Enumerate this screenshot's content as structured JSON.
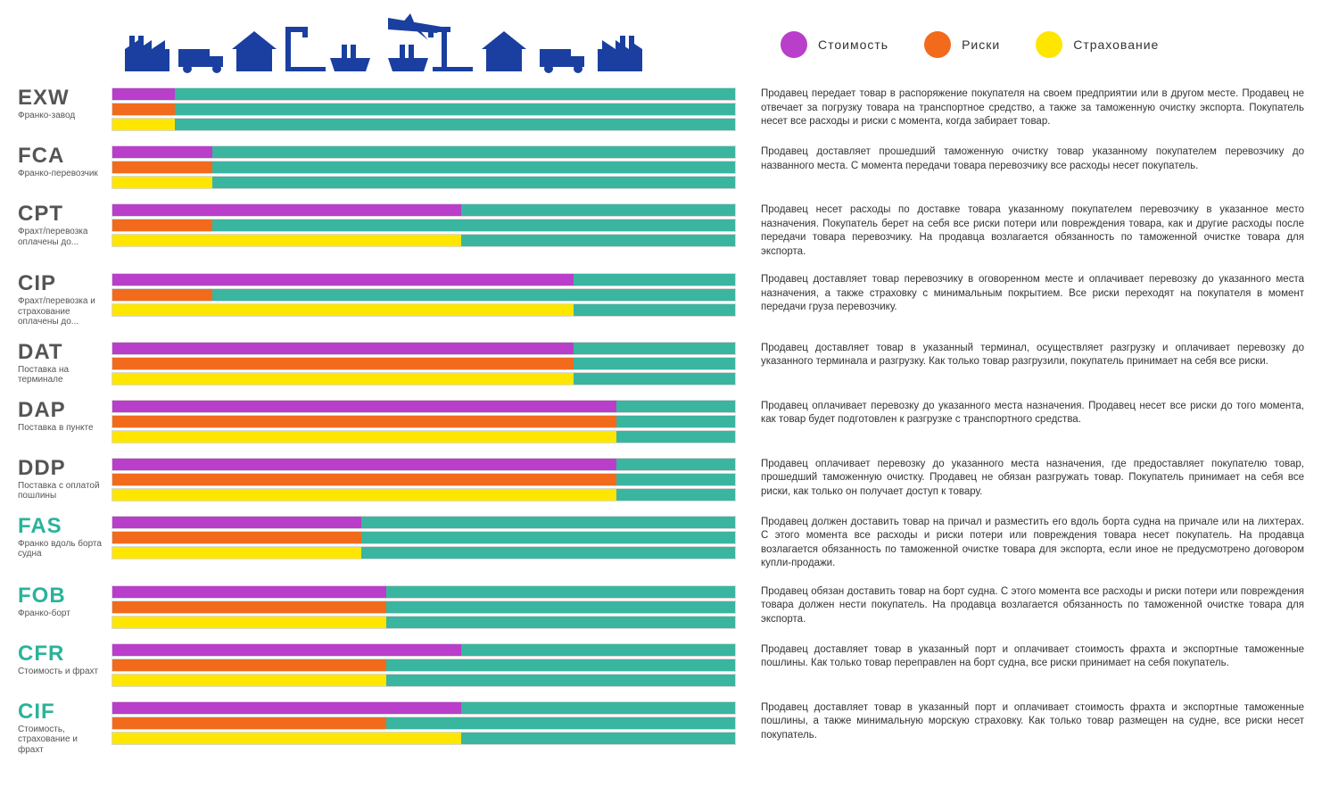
{
  "colors": {
    "cost": "#b93ec9",
    "risk": "#f26a1b",
    "insurance": "#ffe600",
    "neutral": "#3ab5a0",
    "iconBlue": "#1a3fa0",
    "codeDark": "#555555",
    "codeTeal": "#2bb39a"
  },
  "legend": [
    {
      "key": "cost",
      "label": "Стоимость"
    },
    {
      "key": "risk",
      "label": "Риски"
    },
    {
      "key": "insurance",
      "label": "Страхование"
    }
  ],
  "bar_neutral_key": "neutral",
  "terms": [
    {
      "code": "EXW",
      "sub": "Франко-завод",
      "codeColor": "codeDark",
      "bars": {
        "cost": 10,
        "risk": 10,
        "insurance": 10
      },
      "desc": "Продавец передает товар в распоряжение покупателя на своем предприятии или в другом месте. Продавец не отвечает за погрузку товара на транспортное средство, а также за таможенную очистку экспорта. Покупатель несет все расходы и риски с момента, когда забирает товар."
    },
    {
      "code": "FCA",
      "sub": "Франко-перевозчик",
      "codeColor": "codeDark",
      "bars": {
        "cost": 16,
        "risk": 16,
        "insurance": 16
      },
      "desc": "Продавец доставляет прошедший таможенную очистку товар указанному покупателем перевозчику до названного места. С момента передачи товара перевозчику все расходы несет покупатель."
    },
    {
      "code": "CPT",
      "sub": "Фрахт/перевозка оплачены до...",
      "codeColor": "codeDark",
      "bars": {
        "cost": 56,
        "risk": 16,
        "insurance": 56
      },
      "desc": "Продавец несет расходы по доставке товара указанному покупателем перевозчику в указанное место назначения. Покупатель берет на себя все риски потери или повреждения товара, как и другие расходы после передачи товара перевозчику. На продавца возлагается обязанность по таможенной очистке товара для экспорта."
    },
    {
      "code": "CIP",
      "sub": "Фрахт/перевозка и страхование оплачены до...",
      "codeColor": "codeDark",
      "bars": {
        "cost": 74,
        "risk": 16,
        "insurance": 74
      },
      "desc": "Продавец доставляет товар перевозчику в оговоренном месте и оплачивает перевозку до указанного места назначения, а также страховку с минимальным покрытием. Все риски переходят на покупателя в момент передачи груза перевозчику."
    },
    {
      "code": "DAT",
      "sub": "Поставка на терминале",
      "codeColor": "codeDark",
      "bars": {
        "cost": 74,
        "risk": 74,
        "insurance": 74
      },
      "desc": "Продавец доставляет товар в указанный терминал, осуществляет разгрузку и оплачивает перевозку до указанного терминала и разгрузку. Как только товар разгрузили, покупатель принимает на себя все риски."
    },
    {
      "code": "DAP",
      "sub": "Поставка в пункте",
      "codeColor": "codeDark",
      "bars": {
        "cost": 81,
        "risk": 81,
        "insurance": 81
      },
      "desc": "Продавец оплачивает перевозку до указанного места назначения. Продавец несет все риски до того момента, как товар будет подготовлен к разгрузке с транспортного средства."
    },
    {
      "code": "DDP",
      "sub": "Поставка с оплатой пошлины",
      "codeColor": "codeDark",
      "bars": {
        "cost": 81,
        "risk": 81,
        "insurance": 81
      },
      "desc": "Продавец оплачивает перевозку до указанного места назначения, где предоставляет покупателю товар, прошедший таможенную очистку. Продавец не обязан разгружать товар. Покупатель принимает на себя все риски, как только он получает доступ к товару."
    },
    {
      "code": "FAS",
      "sub": "Франко вдоль борта судна",
      "codeColor": "codeTeal",
      "bars": {
        "cost": 40,
        "risk": 40,
        "insurance": 40
      },
      "desc": "Продавец должен доставить товар на причал и разместить его вдоль борта судна на причале или на лихтерах. С этого момента все расходы и риски потери или повреждения товара несет покупатель. На продавца возлагается обязанность по таможенной очистке товара для экспорта, если иное не предусмотрено договором купли-продажи."
    },
    {
      "code": "FOB",
      "sub": "Франко-борт",
      "codeColor": "codeTeal",
      "bars": {
        "cost": 44,
        "risk": 44,
        "insurance": 44
      },
      "desc": "Продавец обязан доставить товар на борт судна. С этого момента все расходы и риски потери или повреждения товара должен нести покупатель. На продавца возлагается обязанность по таможенной очистке товара для экспорта."
    },
    {
      "code": "CFR",
      "sub": "Стоимость и фрахт",
      "codeColor": "codeTeal",
      "bars": {
        "cost": 56,
        "risk": 44,
        "insurance": 44
      },
      "desc": "Продавец доставляет товар в указанный порт и оплачивает стоимость фрахта и экспортные таможенные пошлины. Как только товар переправлен на борт судна, все риски принимает на себя покупатель."
    },
    {
      "code": "CIF",
      "sub": "Стоимость, страхование и фрахт",
      "codeColor": "codeTeal",
      "bars": {
        "cost": 56,
        "risk": 44,
        "insurance": 56
      },
      "desc": "Продавец доставляет товар в указанный порт и оплачивает стоимость фрахта и экспортные таможенные пошлины, а также минимальную морскую страховку. Как только товар размещен на судне, все риски несет покупатель."
    }
  ]
}
